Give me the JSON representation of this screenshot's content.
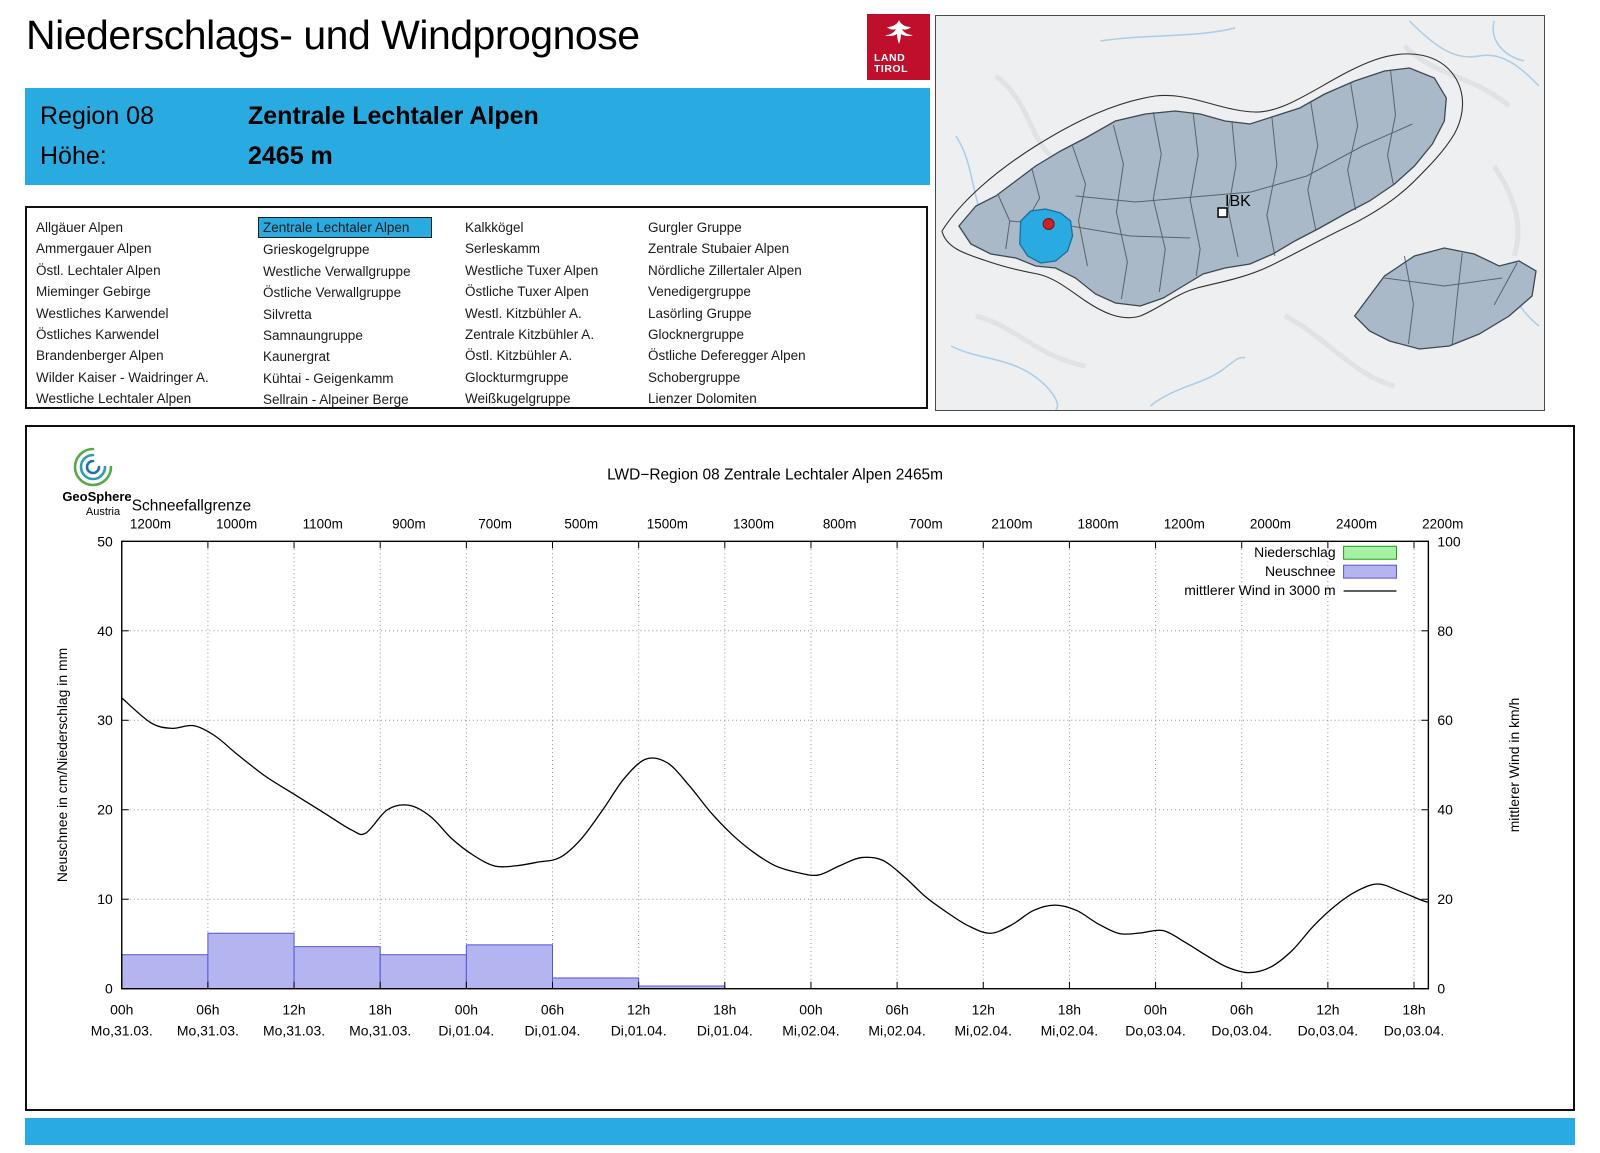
{
  "page": {
    "title": "Niederschlags- und Windprognose"
  },
  "colors": {
    "accent": "#29abe2",
    "tirol_red": "#c00f2d"
  },
  "logo": {
    "line1": "LAND",
    "line2": "TIROL"
  },
  "map": {
    "city_label": "IBK"
  },
  "branding": {
    "geosphere_line1": "GeoSphere",
    "geosphere_line2": "Austria"
  },
  "header": {
    "region_label": "Region 08",
    "region_name": "Zentrale Lechtaler Alpen",
    "altitude_label": "Höhe:",
    "altitude_value": "2465 m"
  },
  "region_list": {
    "selected": "Zentrale Lechtaler Alpen",
    "columns": [
      [
        "Allgäuer Alpen",
        "Ammergauer Alpen",
        "Östl. Lechtaler Alpen",
        "Mieminger Gebirge",
        "Westliches Karwendel",
        "Östliches Karwendel",
        "Brandenberger Alpen",
        "Wilder Kaiser - Waidringer A.",
        "Westliche Lechtaler Alpen"
      ],
      [
        "Zentrale Lechtaler Alpen",
        "Grieskogelgruppe",
        "Westliche Verwallgruppe",
        "Östliche Verwallgruppe",
        "Silvretta",
        "Samnaungruppe",
        "Kaunergrat",
        "Kühtai - Geigenkamm",
        "Sellrain - Alpeiner Berge"
      ],
      [
        "Kalkkögel",
        "Serleskamm",
        "Westliche Tuxer Alpen",
        "Östliche Tuxer Alpen",
        "Westl. Kitzbühler A.",
        "Zentrale Kitzbühler A.",
        "Östl. Kitzbühler A.",
        "Glockturmgruppe",
        "Weißkugelgruppe"
      ],
      [
        "Gurgler Gruppe",
        "Zentrale Stubaier Alpen",
        "Nördliche Zillertaler Alpen",
        "Venedigergruppe",
        "Lasörling Gruppe",
        "Glocknergruppe",
        "Östliche Deferegger Alpen",
        "Schobergruppe",
        "Lienzer Dolomiten"
      ]
    ]
  },
  "chart_data": {
    "type": "combo",
    "title": "LWD−Region 08 Zentrale Lechtaler Alpen 2465m",
    "snowline": {
      "label": "Schneefallgrenze",
      "values": [
        "1200m",
        "1000m",
        "1100m",
        "900m",
        "700m",
        "500m",
        "1500m",
        "1300m",
        "800m",
        "700m",
        "2100m",
        "1800m",
        "1200m",
        "2000m",
        "2400m",
        "2200m"
      ]
    },
    "x_axis": {
      "hours_domain": [
        0,
        91
      ],
      "tick_interval_hours": 6,
      "ticks": [
        {
          "hour": "00h",
          "date": "Mo,31.03."
        },
        {
          "hour": "06h",
          "date": "Mo,31.03."
        },
        {
          "hour": "12h",
          "date": "Mo,31.03."
        },
        {
          "hour": "18h",
          "date": "Mo,31.03."
        },
        {
          "hour": "00h",
          "date": "Di,01.04."
        },
        {
          "hour": "06h",
          "date": "Di,01.04."
        },
        {
          "hour": "12h",
          "date": "Di,01.04."
        },
        {
          "hour": "18h",
          "date": "Di,01.04."
        },
        {
          "hour": "00h",
          "date": "Mi,02.04."
        },
        {
          "hour": "06h",
          "date": "Mi,02.04."
        },
        {
          "hour": "12h",
          "date": "Mi,02.04."
        },
        {
          "hour": "18h",
          "date": "Mi,02.04."
        },
        {
          "hour": "00h",
          "date": "Do,03.04."
        },
        {
          "hour": "06h",
          "date": "Do,03.04."
        },
        {
          "hour": "12h",
          "date": "Do,03.04."
        },
        {
          "hour": "18h",
          "date": "Do,03.04."
        }
      ]
    },
    "y_left": {
      "label": "Neuschnee in cm/Niederschlag in mm",
      "min": 0,
      "max": 50,
      "ticks": [
        0,
        10,
        20,
        30,
        40,
        50
      ]
    },
    "y_right": {
      "label": "mittlerer Wind in km/h",
      "min": 0,
      "max": 100,
      "ticks": [
        0,
        20,
        40,
        60,
        80,
        100
      ]
    },
    "legend": [
      {
        "label": "Niederschlag",
        "type": "box",
        "fill": "#a6f1a6",
        "border": "#18a018"
      },
      {
        "label": "Neuschnee",
        "type": "box",
        "fill": "#b4b4f0",
        "border": "#5353d6"
      },
      {
        "label": "mittlerer Wind in 3000 m",
        "type": "line",
        "color": "#000000"
      }
    ],
    "series": {
      "neuschnee_cm": {
        "name": "Neuschnee",
        "axis": "left",
        "unit": "cm",
        "type": "bar",
        "fill": "#b4b4f0",
        "stroke": "#5353d6",
        "bars": [
          {
            "from_h": 0,
            "to_h": 6,
            "value": 3.8
          },
          {
            "from_h": 6,
            "to_h": 12,
            "value": 6.2
          },
          {
            "from_h": 12,
            "to_h": 18,
            "value": 4.7
          },
          {
            "from_h": 18,
            "to_h": 24,
            "value": 3.8
          },
          {
            "from_h": 24,
            "to_h": 30,
            "value": 4.9
          },
          {
            "from_h": 30,
            "to_h": 36,
            "value": 1.2
          },
          {
            "from_h": 36,
            "to_h": 42,
            "value": 0.3
          }
        ]
      },
      "niederschlag_mm": {
        "name": "Niederschlag",
        "axis": "left",
        "unit": "mm",
        "type": "bar",
        "fill": "#a6f1a6",
        "stroke": "#18a018",
        "bars": []
      },
      "wind_kmh": {
        "name": "mittlerer Wind in 3000 m",
        "axis": "right",
        "unit": "km/h",
        "type": "line",
        "color": "#000000",
        "points": [
          [
            0,
            65
          ],
          [
            2,
            59.5
          ],
          [
            3.5,
            58.2
          ],
          [
            5,
            58.8
          ],
          [
            6.5,
            56.5
          ],
          [
            8,
            52.5
          ],
          [
            10,
            47.5
          ],
          [
            12,
            43.5
          ],
          [
            14,
            39.5
          ],
          [
            16,
            35.5
          ],
          [
            17,
            34.8
          ],
          [
            18.5,
            40
          ],
          [
            20,
            41
          ],
          [
            21.5,
            38.5
          ],
          [
            23,
            33.5
          ],
          [
            24.5,
            29.8
          ],
          [
            26,
            27.4
          ],
          [
            27.5,
            27.5
          ],
          [
            29,
            28.3
          ],
          [
            30.5,
            29.3
          ],
          [
            32,
            33.5
          ],
          [
            33.5,
            40
          ],
          [
            35,
            47
          ],
          [
            36.5,
            51.3
          ],
          [
            38,
            50.5
          ],
          [
            39.5,
            45.5
          ],
          [
            41,
            39.5
          ],
          [
            42.5,
            34.5
          ],
          [
            44,
            30.5
          ],
          [
            45.5,
            27.5
          ],
          [
            47,
            26
          ],
          [
            48.5,
            25.4
          ],
          [
            50,
            27.5
          ],
          [
            51.5,
            29.3
          ],
          [
            53,
            28.7
          ],
          [
            54.5,
            25
          ],
          [
            56,
            20.5
          ],
          [
            57.5,
            17
          ],
          [
            59,
            14
          ],
          [
            60.5,
            12.4
          ],
          [
            62,
            14.3
          ],
          [
            63.5,
            17.5
          ],
          [
            65,
            18.7
          ],
          [
            66.5,
            17.5
          ],
          [
            68,
            14.5
          ],
          [
            69.5,
            12.3
          ],
          [
            71,
            12.5
          ],
          [
            72.5,
            13
          ],
          [
            74,
            10.5
          ],
          [
            75.5,
            7.5
          ],
          [
            77,
            4.8
          ],
          [
            78.5,
            3.6
          ],
          [
            80,
            4.8
          ],
          [
            81.5,
            8.5
          ],
          [
            83,
            14
          ],
          [
            84.5,
            18.5
          ],
          [
            86,
            21.8
          ],
          [
            87.5,
            23.4
          ],
          [
            89,
            21.8
          ],
          [
            90.5,
            19.8
          ],
          [
            91,
            19.3
          ]
        ]
      }
    }
  }
}
